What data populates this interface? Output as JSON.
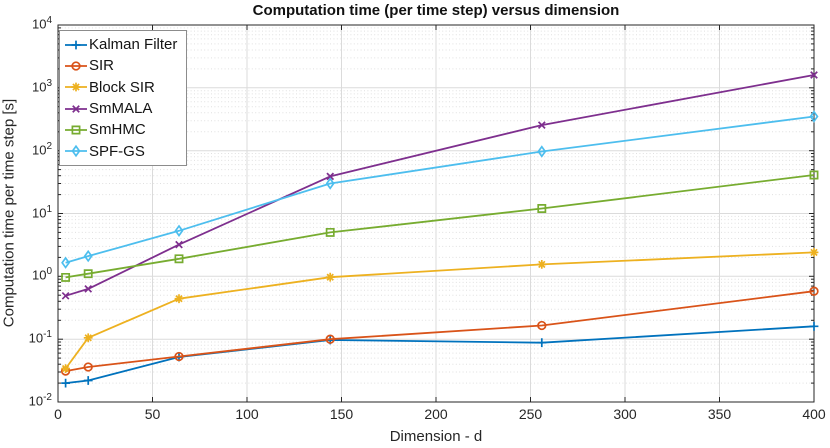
{
  "chart_data": {
    "type": "line",
    "title": "Computation time (per time step) versus dimension",
    "xlabel": "Dimension - d",
    "ylabel": "Computation time per time step [s]",
    "x_scale": "linear",
    "y_scale": "log",
    "xlim": [
      0,
      400
    ],
    "ylim": [
      0.01,
      10000
    ],
    "ylim_exp": [
      -2,
      4
    ],
    "x_ticks": [
      0,
      50,
      100,
      150,
      200,
      250,
      300,
      350,
      400
    ],
    "y_tick_exponents": [
      -2,
      -1,
      0,
      1,
      2,
      3,
      4
    ],
    "grid": "major solid + log minor dotted",
    "legend_position": "top-left-inside",
    "x": [
      4,
      16,
      64,
      144,
      256,
      400
    ],
    "series": [
      {
        "name": "Kalman Filter",
        "color": "#0072BD",
        "marker": "plus",
        "values": [
          0.02,
          0.022,
          0.052,
          0.097,
          0.088,
          0.16
        ]
      },
      {
        "name": "SIR",
        "color": "#D95319",
        "marker": "circle",
        "values": [
          0.031,
          0.036,
          0.053,
          0.1,
          0.165,
          0.58
        ]
      },
      {
        "name": "Block SIR",
        "color": "#EDB120",
        "marker": "asterisk",
        "values": [
          0.034,
          0.105,
          0.44,
          0.97,
          1.55,
          2.4
        ]
      },
      {
        "name": "SmMALA",
        "color": "#7E2F8E",
        "marker": "x",
        "values": [
          0.49,
          0.63,
          3.2,
          39,
          255,
          1600
        ]
      },
      {
        "name": "SmHMC",
        "color": "#77AC30",
        "marker": "square",
        "values": [
          0.96,
          1.1,
          1.9,
          5.0,
          12,
          41
        ]
      },
      {
        "name": "SPF-GS",
        "color": "#4DBEEE",
        "marker": "diamond",
        "values": [
          1.65,
          2.1,
          5.3,
          30,
          97,
          350
        ]
      }
    ]
  }
}
